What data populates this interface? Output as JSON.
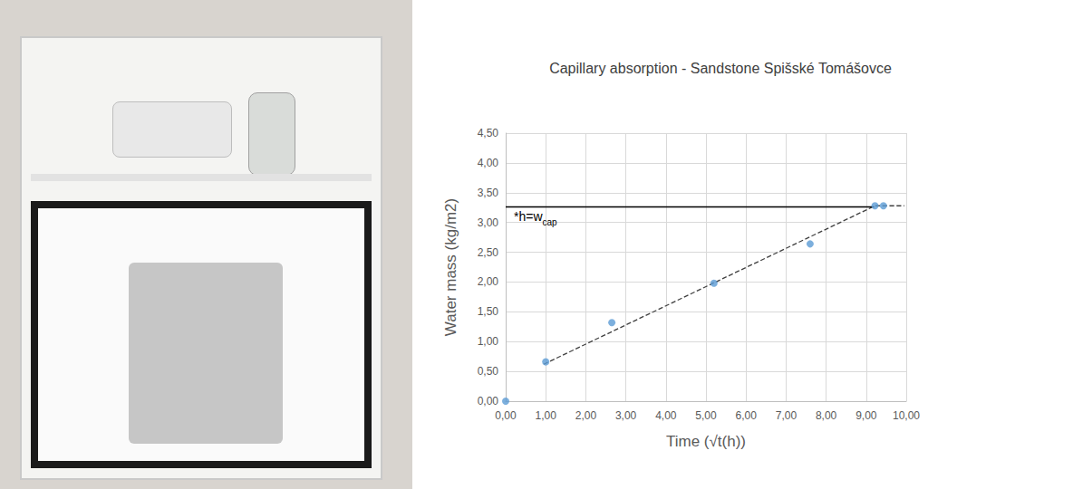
{
  "chart_data": {
    "type": "scatter",
    "title": "Capillary absorption - Sandstone Spišské Tomášovce",
    "x_label": "Time (√t(h))",
    "y_label": "Water mass (kg/m2)",
    "annotation": {
      "text": "*h=w",
      "subscript": "cap"
    },
    "grid": true,
    "xlim": [
      0,
      10
    ],
    "ylim": [
      0,
      4.5
    ],
    "xticks": [
      {
        "value": 0,
        "label": "0,00"
      },
      {
        "value": 1,
        "label": "1,00"
      },
      {
        "value": 2,
        "label": "2,00"
      },
      {
        "value": 3,
        "label": "3,00"
      },
      {
        "value": 4,
        "label": "4,00"
      },
      {
        "value": 5,
        "label": "5,00"
      },
      {
        "value": 6,
        "label": "6,00"
      },
      {
        "value": 7,
        "label": "7,00"
      },
      {
        "value": 8,
        "label": "8,00"
      },
      {
        "value": 9,
        "label": "9,00"
      },
      {
        "value": 10,
        "label": "10,00"
      }
    ],
    "yticks": [
      {
        "value": 0,
        "label": "0,00"
      },
      {
        "value": 0.5,
        "label": "0,50"
      },
      {
        "value": 1,
        "label": "1,00"
      },
      {
        "value": 1.5,
        "label": "1,50"
      },
      {
        "value": 2,
        "label": "2,00"
      },
      {
        "value": 2.5,
        "label": "2,50"
      },
      {
        "value": 3,
        "label": "3,00"
      },
      {
        "value": 3.5,
        "label": "3,50"
      },
      {
        "value": 4,
        "label": "4,00"
      },
      {
        "value": 4.5,
        "label": "4,50"
      }
    ],
    "series": [
      {
        "type": "line",
        "line_style": "dashed",
        "color": "#404040",
        "x": [
          0.95,
          9.22,
          9.95
        ],
        "values": [
          0.62,
          3.28,
          3.28
        ]
      },
      {
        "type": "arrow",
        "line_style": "solid",
        "color": "#000000",
        "x": [
          9.2,
          0
        ],
        "values": [
          3.26,
          3.26
        ]
      },
      {
        "type": "scatter",
        "marker": "circle",
        "color": "#5b9bd5",
        "x": [
          0,
          1.0,
          2.65,
          5.2,
          7.6,
          9.22,
          9.43
        ],
        "values": [
          0,
          0.66,
          1.32,
          1.98,
          2.64,
          3.28,
          3.28
        ]
      }
    ]
  }
}
